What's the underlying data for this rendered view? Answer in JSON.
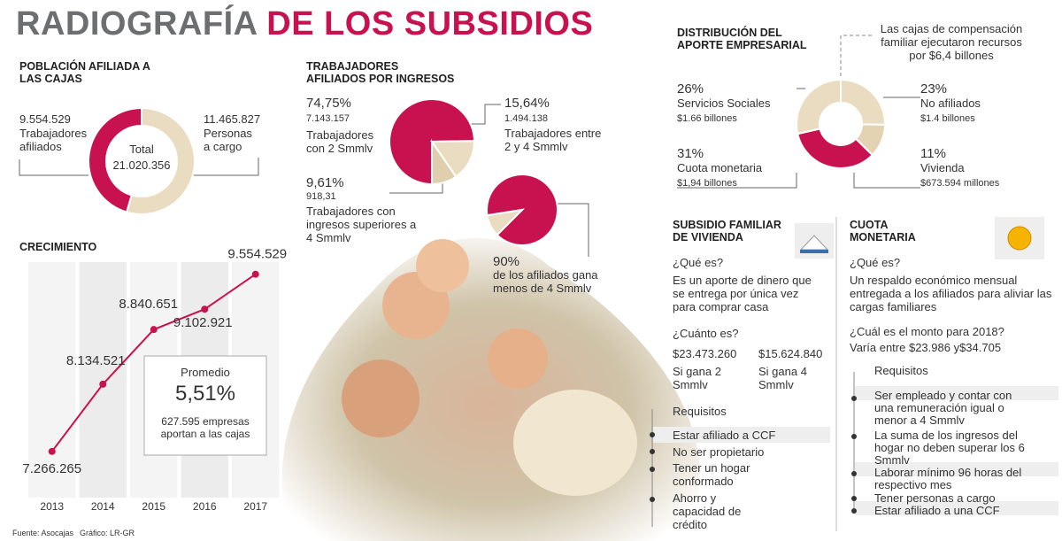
{
  "header": {
    "title_a": "RADIOGRAFÍA",
    "title_b": "DE LOS SUBSIDIOS"
  },
  "chart_data": [
    {
      "type": "donut",
      "title": "POBLACIÓN AFILIADA A LAS CAJAS",
      "categories": [
        "Personas a cargo",
        "Trabajadores afiliados"
      ],
      "values": [
        11465827,
        9554529
      ],
      "value_labels": [
        "11.465.827",
        "9.554.529"
      ],
      "colors": [
        "#eadcc0",
        "#c8124f"
      ],
      "center_text": [
        "Total",
        "21.020.356"
      ]
    },
    {
      "type": "pie",
      "title": "TRABAJADORES AFILIADOS POR INGRESOS",
      "categories": [
        "Trabajadores con 2 Smmlv",
        "Trabajadores entre 2 y 4 Smmlv",
        "Trabajadores con ingresos superiores a 4 Smmlv"
      ],
      "values": [
        74.75,
        15.64,
        9.61
      ],
      "value_labels": [
        "74,75%",
        "15,64%",
        "9,61%"
      ],
      "counts": [
        7143157,
        1494138,
        918.31
      ],
      "count_labels": [
        "7.143.157",
        "1.494.138",
        "918,31"
      ],
      "colors": [
        "#c8124f",
        "#eadcc0",
        "#dfcfae"
      ]
    },
    {
      "type": "pie",
      "categories": [
        "de los afiliados gana menos de 4 Smmlv",
        null
      ],
      "values": [
        90,
        10
      ],
      "value_labels": [
        "90%",
        null
      ],
      "colors": [
        "#c8124f",
        "#eadcc0"
      ]
    },
    {
      "type": "line",
      "title": "CRECIMIENTO",
      "categories": [
        "2013",
        "2014",
        "2015",
        "2016",
        "2017"
      ],
      "values": [
        7266265,
        8134521,
        8840651,
        9102921,
        9554529
      ],
      "value_labels": [
        "7.266.265",
        "8.134.521",
        "8.840.651",
        "9.102.921",
        "9.554.529"
      ],
      "ylim": [
        6750000,
        9780000
      ],
      "color": "#c8124f",
      "callout": {
        "title": "Promedio",
        "value": "5,51%",
        "text": "627.595 empresas aportan a las cajas"
      }
    },
    {
      "type": "donut",
      "title": "DISTRIBUCIÓN DEL APORTE EMPRESARIAL",
      "note": "Las cajas de compensación familiar ejecutaron recursos por $6,4 billones",
      "categories": [
        "No afiliados",
        "Vivienda",
        "Cuota monetaria",
        "Servicios Sociales"
      ],
      "values": [
        23,
        11,
        31,
        26
      ],
      "value_labels": [
        "23%",
        "11%",
        "31%",
        "26%"
      ],
      "amounts": [
        "$1.4 billones",
        "$673.594 millones",
        "$1,94 billones",
        "$1.66 billones"
      ],
      "colors": [
        "#eadcc0",
        "#e3d3b3",
        "#c8124f",
        "#eadcc0"
      ]
    }
  ],
  "sections": {
    "vivienda": {
      "title": "SUBSIDIO FAMILIAR DE VIVIENDA",
      "q1": "¿Qué es?",
      "a1": "Es un aporte de dinero que se entrega por única vez para comprar casa",
      "q2": "¿Cuánto es?",
      "amounts": [
        {
          "value": "$23.473.260",
          "text": "Si gana 2 Smmlv"
        },
        {
          "value": "$15.624.840",
          "text": "Si gana 4 Smmlv"
        }
      ],
      "requirements_title": "Requisitos",
      "requirements": [
        "Estar afiliado a CCF",
        "No ser propietario",
        "Tener un hogar conformado",
        "Ahorro y capacidad de crédito"
      ]
    },
    "cuota": {
      "title": "CUOTA MONETARIA",
      "q1": "¿Qué es?",
      "a1": "Un respaldo económico mensual entregada a los afiliados para aliviar las cargas familiares",
      "q2": "¿Cuál es el monto para 2018?",
      "a2": "Varía entre $23.986 y$34.705",
      "requirements_title": "Requisitos",
      "requirements": [
        "Ser empleado y contar con una remuneración igual o menor a 4 Smmlv",
        "La suma de los ingresos del hogar no deben superar los 6 Smmlv",
        "Laborar mínimo 96 horas del respectivo mes",
        "Tener personas a cargo",
        "Estar afiliado a una CCF"
      ]
    }
  },
  "footer": {
    "source": "Fuente: Asocajas",
    "graphic": "Gráfico: LR-GR"
  }
}
